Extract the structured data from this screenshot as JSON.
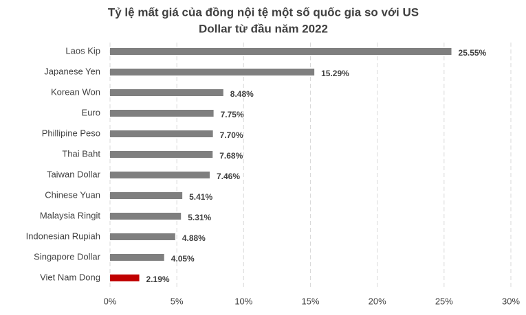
{
  "chart_data": {
    "type": "bar",
    "orientation": "horizontal",
    "title": [
      "Tỷ lệ mất giá của đồng nội tệ một số quốc gia so với US",
      "Dollar từ đầu năm 2022"
    ],
    "categories": [
      "Laos Kip",
      "Japanese Yen",
      "Korean Won",
      "Euro",
      "Phillipine Peso",
      "Thai Baht",
      "Taiwan Dollar",
      "Chinese Yuan",
      "Malaysia Ringit",
      "Indonesian Rupiah",
      "Singapore Dollar",
      "Viet Nam Dong"
    ],
    "values": [
      25.55,
      15.29,
      8.48,
      7.75,
      7.7,
      7.68,
      7.46,
      5.41,
      5.31,
      4.88,
      4.05,
      2.19
    ],
    "value_labels": [
      "25.55%",
      "15.29%",
      "8.48%",
      "7.75%",
      "7.70%",
      "7.68%",
      "7.46%",
      "5.41%",
      "5.31%",
      "4.88%",
      "4.05%",
      "2.19%"
    ],
    "colors": [
      "#7f7f7f",
      "#7f7f7f",
      "#7f7f7f",
      "#7f7f7f",
      "#7f7f7f",
      "#7f7f7f",
      "#7f7f7f",
      "#7f7f7f",
      "#7f7f7f",
      "#7f7f7f",
      "#7f7f7f",
      "#c00000"
    ],
    "xlim": [
      0,
      30
    ],
    "xticks": [
      {
        "value": 0,
        "label": "0%"
      },
      {
        "value": 5,
        "label": "5%"
      },
      {
        "value": 10,
        "label": "10%"
      },
      {
        "value": 15,
        "label": "15%"
      },
      {
        "value": 20,
        "label": "20%"
      },
      {
        "value": 25,
        "label": "25%"
      },
      {
        "value": 30,
        "label": "30%"
      }
    ],
    "grid": true
  }
}
